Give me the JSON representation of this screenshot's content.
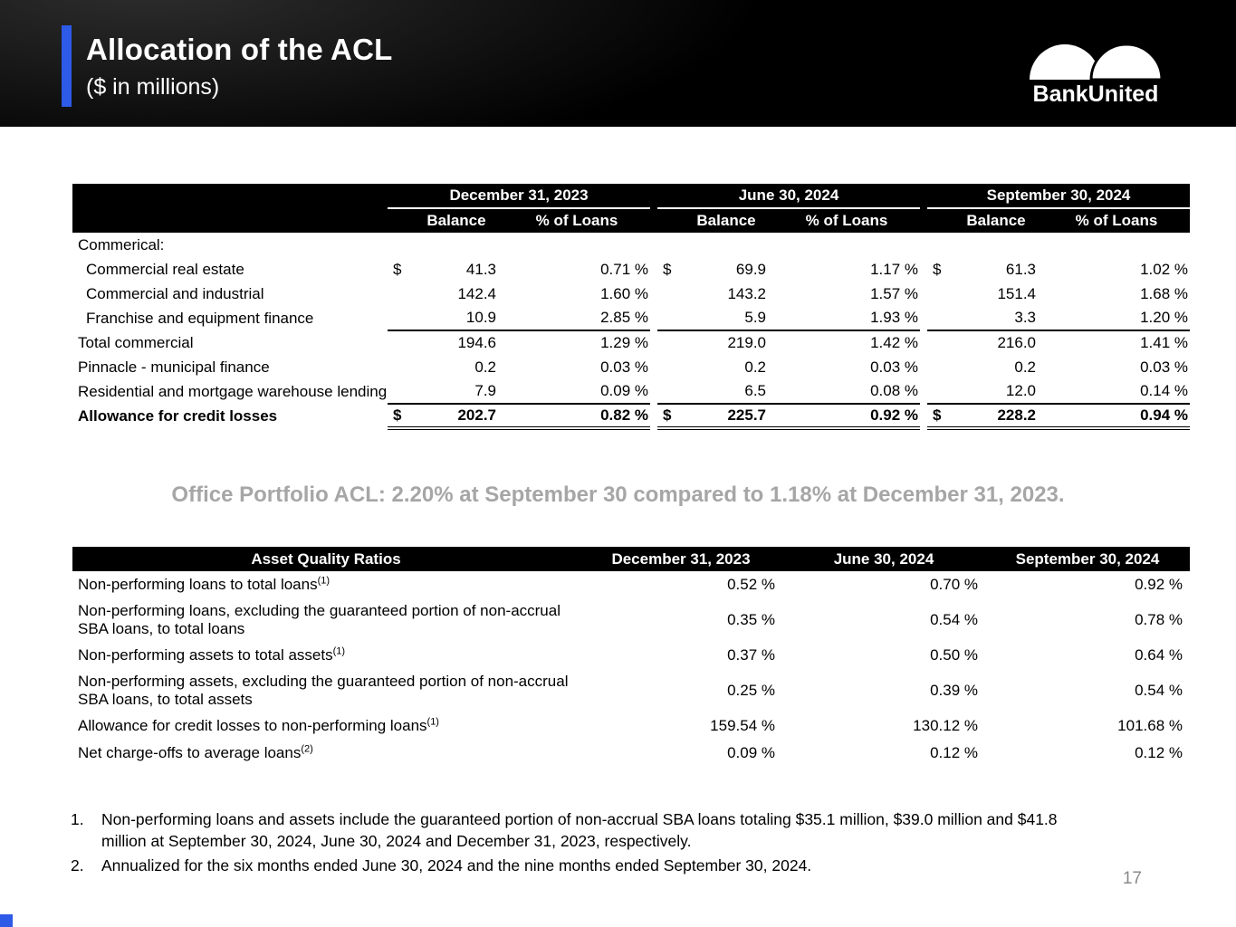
{
  "slide": {
    "title": "Allocation of the ACL",
    "subtitle": "($ in millions)",
    "logo_text": "BankUnited",
    "page_number": "17",
    "accent_color": "#2e5ae8",
    "highlight_color": "#a6a6a6"
  },
  "acl_table": {
    "col_groups": [
      "December 31, 2023",
      "June 30, 2024",
      "September 30, 2024"
    ],
    "sub_headers": [
      "Balance",
      "% of Loans"
    ],
    "rows": [
      {
        "label": "Commerical:",
        "section": true
      },
      {
        "label": "Commercial real estate",
        "indent": true,
        "dollar": true,
        "values": [
          "41.3",
          "0.71 %",
          "69.9",
          "1.17 %",
          "61.3",
          "1.02 %"
        ]
      },
      {
        "label": "Commercial and industrial",
        "indent": true,
        "values": [
          "142.4",
          "1.60 %",
          "143.2",
          "1.57 %",
          "151.4",
          "1.68 %"
        ]
      },
      {
        "label": "Franchise and equipment finance",
        "indent": true,
        "line": "single",
        "values": [
          "10.9",
          "2.85 %",
          "5.9",
          "1.93 %",
          "3.3",
          "1.20 %"
        ]
      },
      {
        "label": "Total commercial",
        "values": [
          "194.6",
          "1.29 %",
          "219.0",
          "1.42 %",
          "216.0",
          "1.41 %"
        ]
      },
      {
        "label": "Pinnacle - municipal finance",
        "values": [
          "0.2",
          "0.03 %",
          "0.2",
          "0.03 %",
          "0.2",
          "0.03 %"
        ]
      },
      {
        "label": "Residential and mortgage warehouse lending",
        "line": "single",
        "values": [
          "7.9",
          "0.09 %",
          "6.5",
          "0.08 %",
          "12.0",
          "0.14 %"
        ]
      },
      {
        "label": "Allowance for credit losses",
        "bold": true,
        "dollar": true,
        "line": "double",
        "values": [
          "202.7",
          "0.82 %",
          "225.7",
          "0.92 %",
          "228.2",
          "0.94 %"
        ]
      }
    ]
  },
  "highlight": "Office Portfolio ACL: 2.20% at September 30 compared to 1.18% at December 31, 2023.",
  "ratios_table": {
    "title": "Asset Quality Ratios",
    "columns": [
      "December 31, 2023",
      "June 30, 2024",
      "September 30, 2024"
    ],
    "rows": [
      {
        "label": "Non-performing loans to total loans",
        "sup": "(1)",
        "values": [
          "0.52 %",
          "0.70 %",
          "0.92 %"
        ]
      },
      {
        "label": "Non-performing loans, excluding the guaranteed portion of non-accrual SBA loans, to total loans",
        "values": [
          "0.35 %",
          "0.54 %",
          "0.78 %"
        ]
      },
      {
        "label": "Non-performing assets to total assets",
        "sup": "(1)",
        "values": [
          "0.37 %",
          "0.50 %",
          "0.64 %"
        ]
      },
      {
        "label": "Non-performing assets, excluding the guaranteed portion of non-accrual SBA loans, to total assets",
        "values": [
          "0.25 %",
          "0.39 %",
          "0.54 %"
        ]
      },
      {
        "label": "Allowance for credit losses to non-performing loans",
        "sup": "(1)",
        "values": [
          "159.54 %",
          "130.12 %",
          "101.68 %"
        ]
      },
      {
        "label": "Net charge-offs to average loans",
        "sup": "(2)",
        "values": [
          "0.09 %",
          "0.12 %",
          "0.12 %"
        ]
      }
    ]
  },
  "footnotes": [
    "Non-performing loans and assets include the guaranteed portion of non-accrual SBA loans totaling $35.1 million, $39.0 million and $41.8 million at September 30, 2024, June 30, 2024 and December 31, 2023, respectively.",
    "Annualized for the six months ended June 30, 2024 and the nine months ended September 30, 2024."
  ]
}
